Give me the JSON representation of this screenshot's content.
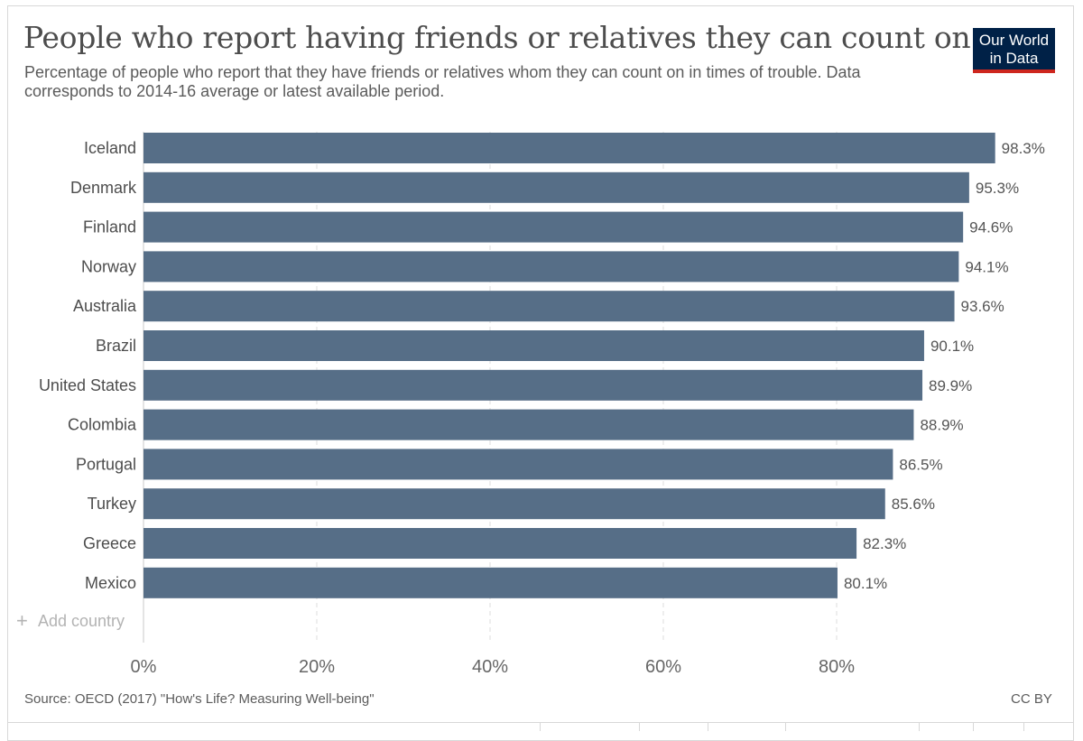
{
  "header": {
    "title": "People who report having friends or relatives they can count on",
    "subtitle": "Percentage of people who report that they have friends or relatives whom they can count on in times of trouble. Data corresponds to 2014-16 average or latest available period."
  },
  "logo": {
    "line1": "Our World",
    "line2": "in Data"
  },
  "controls": {
    "add_country": "Add country"
  },
  "footer": {
    "source": "Source: OECD (2017) \"How's Life? Measuring Well-being\"",
    "license": "CC BY"
  },
  "colors": {
    "bar": "#566E87",
    "text": "#4d4d4d",
    "grid": "#dddddd",
    "logo_bg": "#002147",
    "logo_accent": "#CE261E"
  },
  "chart_data": {
    "type": "bar",
    "orientation": "horizontal",
    "title": "People who report having friends or relatives they can count on",
    "xlabel": "",
    "ylabel": "",
    "unit": "%",
    "xlim": [
      0,
      100
    ],
    "x_ticks": [
      0,
      20,
      40,
      60,
      80
    ],
    "x_tick_labels": [
      "0%",
      "20%",
      "40%",
      "60%",
      "80%"
    ],
    "grid": "vertical-dashed",
    "categories": [
      "Iceland",
      "Denmark",
      "Finland",
      "Norway",
      "Australia",
      "Brazil",
      "United States",
      "Colombia",
      "Portugal",
      "Turkey",
      "Greece",
      "Mexico"
    ],
    "values": [
      98.3,
      95.3,
      94.6,
      94.1,
      93.6,
      90.1,
      89.9,
      88.9,
      86.5,
      85.6,
      82.3,
      80.1
    ],
    "value_labels": [
      "98.3%",
      "95.3%",
      "94.6%",
      "94.1%",
      "93.6%",
      "90.1%",
      "89.9%",
      "88.9%",
      "86.5%",
      "85.6%",
      "82.3%",
      "80.1%"
    ]
  }
}
